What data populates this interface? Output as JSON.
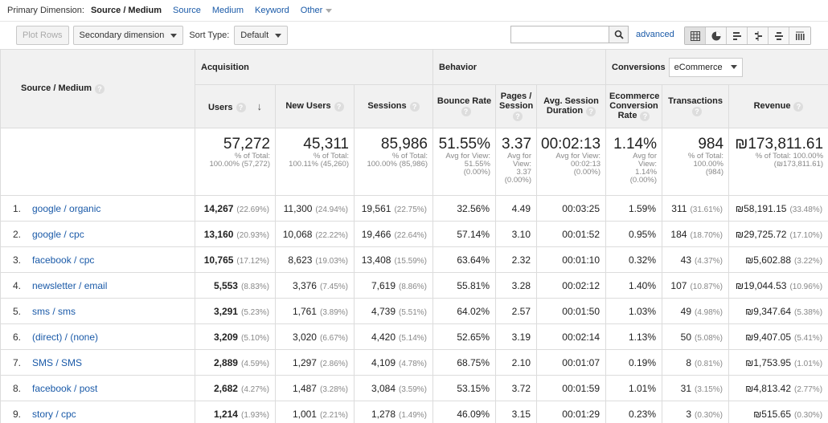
{
  "primary_dimension": {
    "label": "Primary Dimension:",
    "current": "Source / Medium",
    "options": [
      "Source",
      "Medium",
      "Keyword",
      "Other"
    ]
  },
  "toolbar": {
    "plot_rows": "Plot Rows",
    "secondary_dimension": "Secondary dimension",
    "sort_type_label": "Sort Type:",
    "sort_type_value": "Default",
    "search_value": "",
    "advanced": "advanced"
  },
  "headers": {
    "source_medium": "Source / Medium",
    "acquisition": "Acquisition",
    "behavior": "Behavior",
    "conversions": "Conversions",
    "conversions_select": "eCommerce",
    "columns": [
      "Users",
      "New Users",
      "Sessions",
      "Bounce Rate",
      "Pages / Session",
      "Avg. Session Duration",
      "Ecommerce Conversion Rate",
      "Transactions",
      "Revenue"
    ]
  },
  "totals": [
    {
      "main": "57,272",
      "sub1": "% of Total:",
      "sub2": "100.00% (57,272)",
      "sub3": "",
      "sub4": ""
    },
    {
      "main": "45,311",
      "sub1": "% of Total:",
      "sub2": "100.11% (45,260)",
      "sub3": "",
      "sub4": ""
    },
    {
      "main": "85,986",
      "sub1": "% of Total:",
      "sub2": "100.00% (85,986)",
      "sub3": "",
      "sub4": ""
    },
    {
      "main": "51.55%",
      "sub1": "Avg for View:",
      "sub2": "51.55%",
      "sub3": "(0.00%)",
      "sub4": ""
    },
    {
      "main": "3.37",
      "sub1": "Avg for",
      "sub2": "View:",
      "sub3": "3.37",
      "sub4": "(0.00%)"
    },
    {
      "main": "00:02:13",
      "sub1": "Avg for View:",
      "sub2": "00:02:13",
      "sub3": "(0.00%)",
      "sub4": ""
    },
    {
      "main": "1.14%",
      "sub1": "Avg for",
      "sub2": "View:",
      "sub3": "1.14%",
      "sub4": "(0.00%)"
    },
    {
      "main": "984",
      "sub1": "% of Total:",
      "sub2": "100.00%",
      "sub3": "(984)",
      "sub4": ""
    },
    {
      "main": "₪173,811.61",
      "sub1": "% of Total: 100.00%",
      "sub2": "(₪173,811.61)",
      "sub3": "",
      "sub4": ""
    }
  ],
  "rows": [
    {
      "idx": "1.",
      "src": "google / organic",
      "users": "14,267",
      "users_p": "(22.69%)",
      "new": "11,300",
      "new_p": "(24.94%)",
      "sess": "19,561",
      "sess_p": "(22.75%)",
      "bounce": "32.56%",
      "pages": "4.49",
      "dur": "00:03:25",
      "conv": "1.59%",
      "tx": "311",
      "tx_p": "(31.61%)",
      "rev": "₪58,191.15",
      "rev_p": "(33.48%)"
    },
    {
      "idx": "2.",
      "src": "google / cpc",
      "users": "13,160",
      "users_p": "(20.93%)",
      "new": "10,068",
      "new_p": "(22.22%)",
      "sess": "19,466",
      "sess_p": "(22.64%)",
      "bounce": "57.14%",
      "pages": "3.10",
      "dur": "00:01:52",
      "conv": "0.95%",
      "tx": "184",
      "tx_p": "(18.70%)",
      "rev": "₪29,725.72",
      "rev_p": "(17.10%)"
    },
    {
      "idx": "3.",
      "src": "facebook / cpc",
      "users": "10,765",
      "users_p": "(17.12%)",
      "new": "8,623",
      "new_p": "(19.03%)",
      "sess": "13,408",
      "sess_p": "(15.59%)",
      "bounce": "63.64%",
      "pages": "2.32",
      "dur": "00:01:10",
      "conv": "0.32%",
      "tx": "43",
      "tx_p": "(4.37%)",
      "rev": "₪5,602.88",
      "rev_p": "(3.22%)"
    },
    {
      "idx": "4.",
      "src": "newsletter / email",
      "users": "5,553",
      "users_p": "(8.83%)",
      "new": "3,376",
      "new_p": "(7.45%)",
      "sess": "7,619",
      "sess_p": "(8.86%)",
      "bounce": "55.81%",
      "pages": "3.28",
      "dur": "00:02:12",
      "conv": "1.40%",
      "tx": "107",
      "tx_p": "(10.87%)",
      "rev": "₪19,044.53",
      "rev_p": "(10.96%)"
    },
    {
      "idx": "5.",
      "src": "sms / sms",
      "users": "3,291",
      "users_p": "(5.23%)",
      "new": "1,761",
      "new_p": "(3.89%)",
      "sess": "4,739",
      "sess_p": "(5.51%)",
      "bounce": "64.02%",
      "pages": "2.57",
      "dur": "00:01:50",
      "conv": "1.03%",
      "tx": "49",
      "tx_p": "(4.98%)",
      "rev": "₪9,347.64",
      "rev_p": "(5.38%)"
    },
    {
      "idx": "6.",
      "src": "(direct) / (none)",
      "users": "3,209",
      "users_p": "(5.10%)",
      "new": "3,020",
      "new_p": "(6.67%)",
      "sess": "4,420",
      "sess_p": "(5.14%)",
      "bounce": "52.65%",
      "pages": "3.19",
      "dur": "00:02:14",
      "conv": "1.13%",
      "tx": "50",
      "tx_p": "(5.08%)",
      "rev": "₪9,407.05",
      "rev_p": "(5.41%)"
    },
    {
      "idx": "7.",
      "src": "SMS / SMS",
      "users": "2,889",
      "users_p": "(4.59%)",
      "new": "1,297",
      "new_p": "(2.86%)",
      "sess": "4,109",
      "sess_p": "(4.78%)",
      "bounce": "68.75%",
      "pages": "2.10",
      "dur": "00:01:07",
      "conv": "0.19%",
      "tx": "8",
      "tx_p": "(0.81%)",
      "rev": "₪1,753.95",
      "rev_p": "(1.01%)"
    },
    {
      "idx": "8.",
      "src": "facebook / post",
      "users": "2,682",
      "users_p": "(4.27%)",
      "new": "1,487",
      "new_p": "(3.28%)",
      "sess": "3,084",
      "sess_p": "(3.59%)",
      "bounce": "53.15%",
      "pages": "3.72",
      "dur": "00:01:59",
      "conv": "1.01%",
      "tx": "31",
      "tx_p": "(3.15%)",
      "rev": "₪4,813.42",
      "rev_p": "(2.77%)"
    },
    {
      "idx": "9.",
      "src": "story / cpc",
      "users": "1,214",
      "users_p": "(1.93%)",
      "new": "1,001",
      "new_p": "(2.21%)",
      "sess": "1,278",
      "sess_p": "(1.49%)",
      "bounce": "46.09%",
      "pages": "3.15",
      "dur": "00:01:29",
      "conv": "0.23%",
      "tx": "3",
      "tx_p": "(0.30%)",
      "rev": "₪515.65",
      "rev_p": "(0.30%)"
    }
  ]
}
